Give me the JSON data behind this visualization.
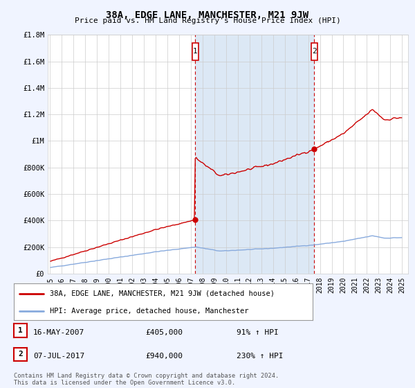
{
  "title": "38A, EDGE LANE, MANCHESTER, M21 9JW",
  "subtitle": "Price paid vs. HM Land Registry's House Price Index (HPI)",
  "footer": "Contains HM Land Registry data © Crown copyright and database right 2024.\nThis data is licensed under the Open Government Licence v3.0.",
  "legend_label_red": "38A, EDGE LANE, MANCHESTER, M21 9JW (detached house)",
  "legend_label_blue": "HPI: Average price, detached house, Manchester",
  "annotation1_date": "16-MAY-2007",
  "annotation1_price": "£405,000",
  "annotation1_pct": "91% ↑ HPI",
  "annotation2_date": "07-JUL-2017",
  "annotation2_price": "£940,000",
  "annotation2_pct": "230% ↑ HPI",
  "shade_start": 2007.37,
  "shade_end": 2017.52,
  "sale1_x": 2007.37,
  "sale1_y": 405000,
  "sale2_x": 2017.52,
  "sale2_y": 940000,
  "xlim": [
    1994.8,
    2025.5
  ],
  "ylim": [
    0,
    1800000
  ],
  "yticks": [
    0,
    200000,
    400000,
    600000,
    800000,
    1000000,
    1200000,
    1400000,
    1600000,
    1800000
  ],
  "ytick_labels": [
    "£0",
    "£200K",
    "£400K",
    "£600K",
    "£800K",
    "£1M",
    "£1.2M",
    "£1.4M",
    "£1.6M",
    "£1.8M"
  ],
  "xticks": [
    1995,
    1996,
    1997,
    1998,
    1999,
    2000,
    2001,
    2002,
    2003,
    2004,
    2005,
    2006,
    2007,
    2008,
    2009,
    2010,
    2011,
    2012,
    2013,
    2014,
    2015,
    2016,
    2017,
    2018,
    2019,
    2020,
    2021,
    2022,
    2023,
    2024,
    2025
  ],
  "bg_color": "#f0f4ff",
  "plot_bg": "#ffffff",
  "red_color": "#cc0000",
  "blue_color": "#88aadd",
  "shade_color": "#dce8f5",
  "grid_color": "#cccccc"
}
